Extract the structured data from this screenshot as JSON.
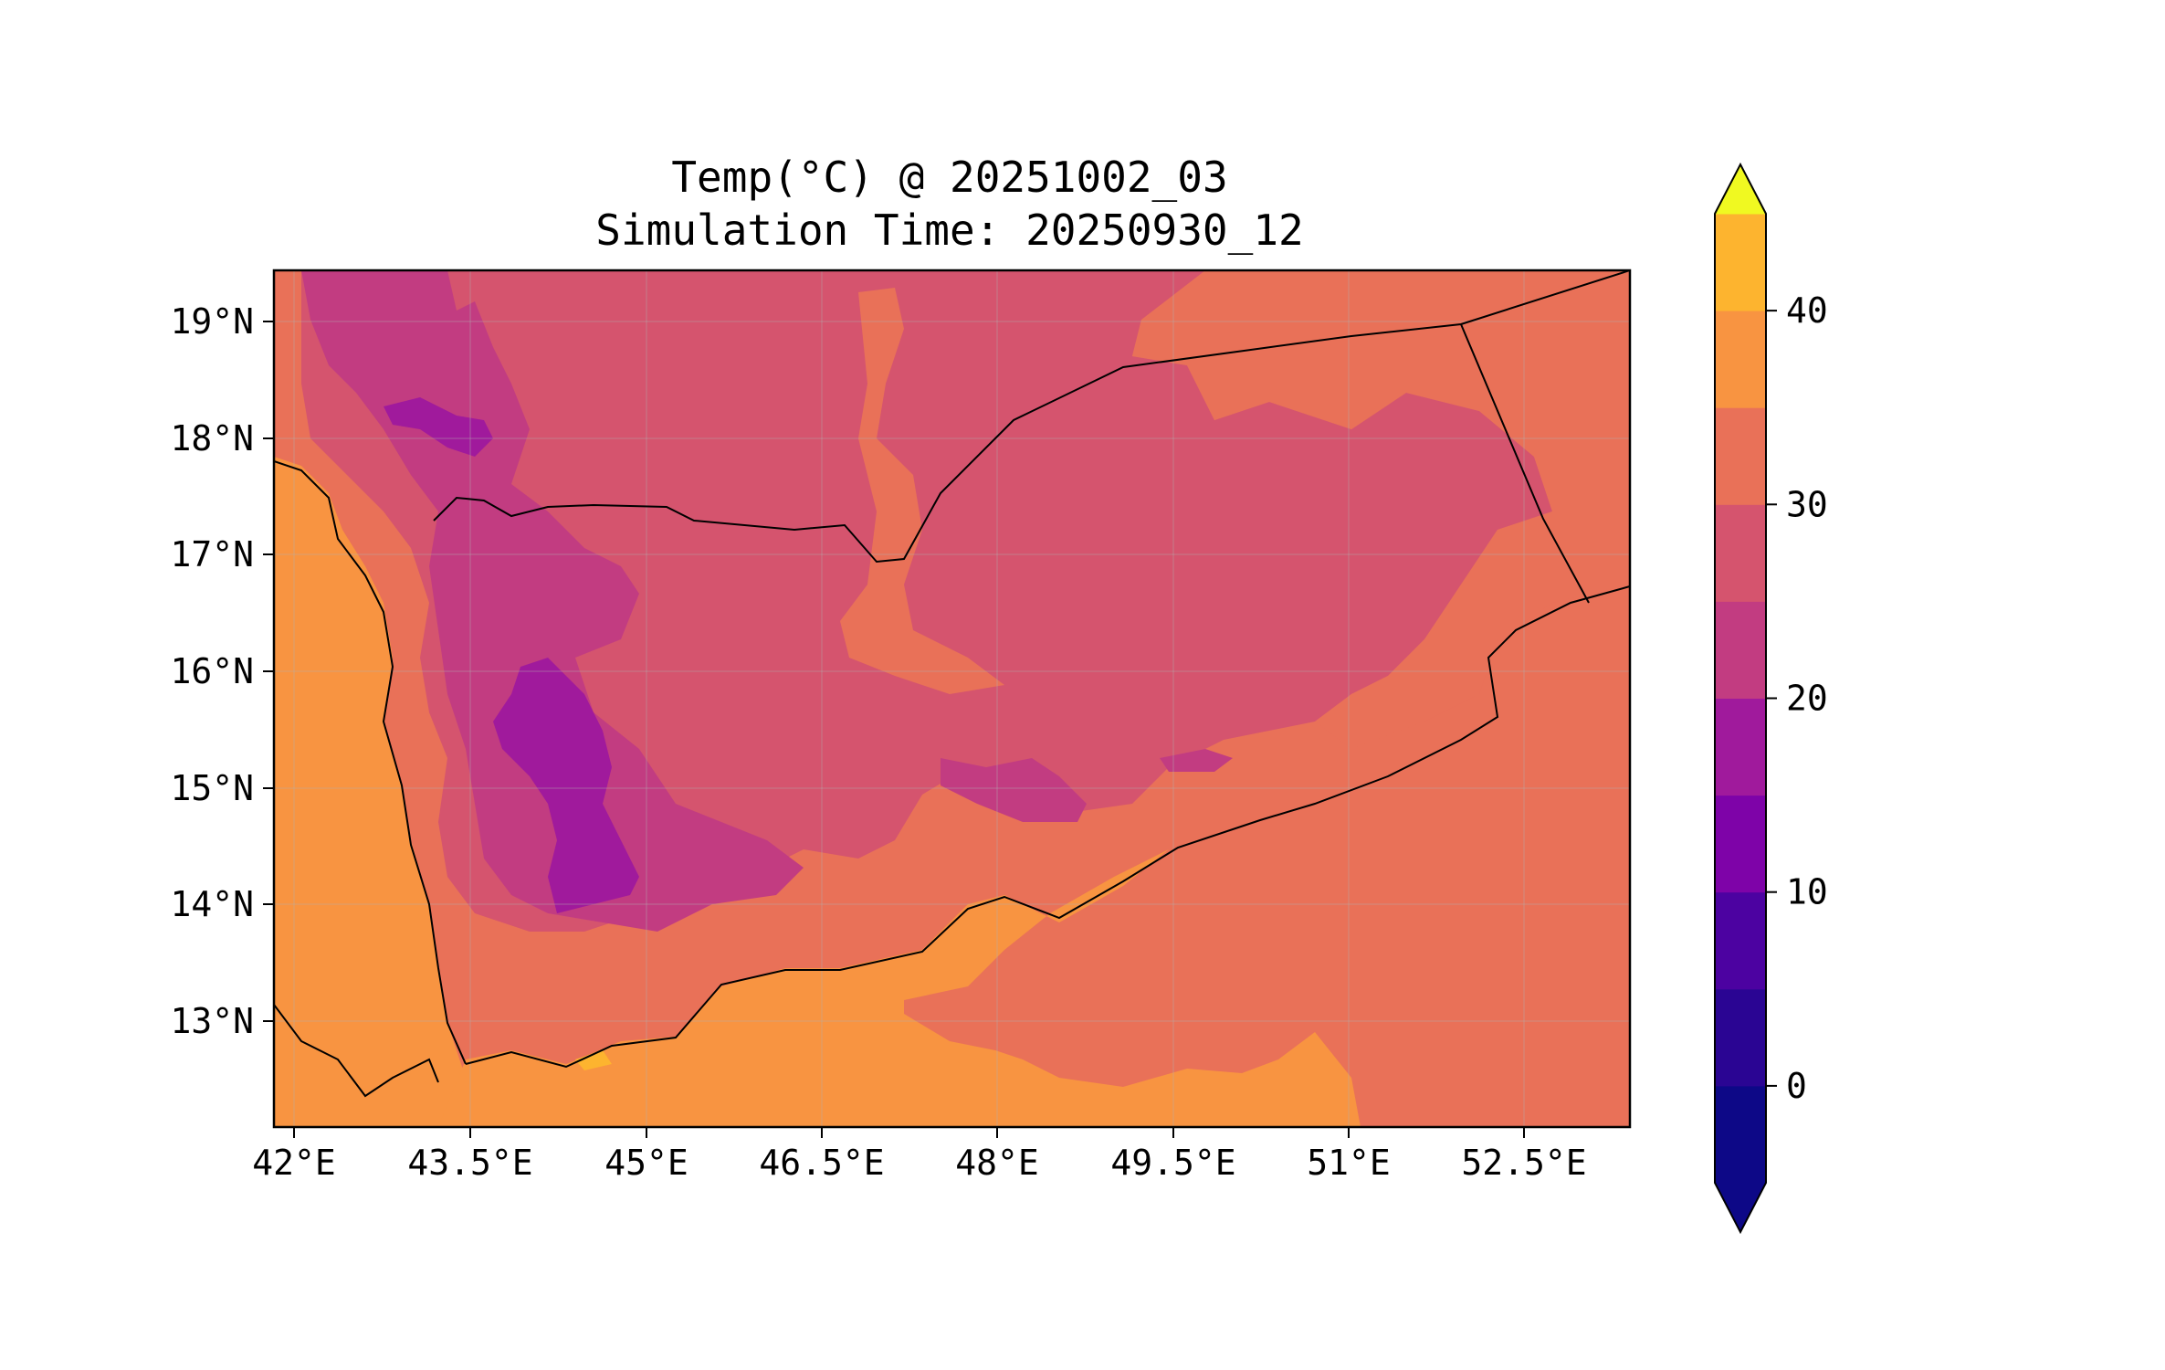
{
  "title_line1": "Temp(°C) @ 20251002_03",
  "title_line2": "Simulation Time: 20250930_12",
  "x_ticks": [
    "42°E",
    "43.5°E",
    "45°E",
    "46.5°E",
    "48°E",
    "49.5°E",
    "51°E",
    "52.5°E"
  ],
  "y_ticks": [
    "19°N",
    "18°N",
    "17°N",
    "16°N",
    "15°N",
    "14°N",
    "13°N"
  ],
  "colorbar": {
    "ticks": [
      "0",
      "10",
      "20",
      "30",
      "40"
    ],
    "levels": [
      -5,
      0,
      5,
      10,
      15,
      20,
      25,
      30,
      35,
      40,
      45
    ],
    "colors": [
      "#0d0887",
      "#2a0593",
      "#4c02a1",
      "#7e03a8",
      "#a01a9c",
      "#c23c81",
      "#d5546e",
      "#e97158",
      "#f89441",
      "#fdb42f",
      "#f0f921"
    ],
    "extend": "both"
  },
  "colors": {
    "sea_orange": "#f89441",
    "land_warm": "#e97158",
    "land_mild": "#d5546e",
    "highland_cool": "#c23c81",
    "highland_cold": "#a01a9c",
    "hot_yellow": "#fdb42f"
  }
}
